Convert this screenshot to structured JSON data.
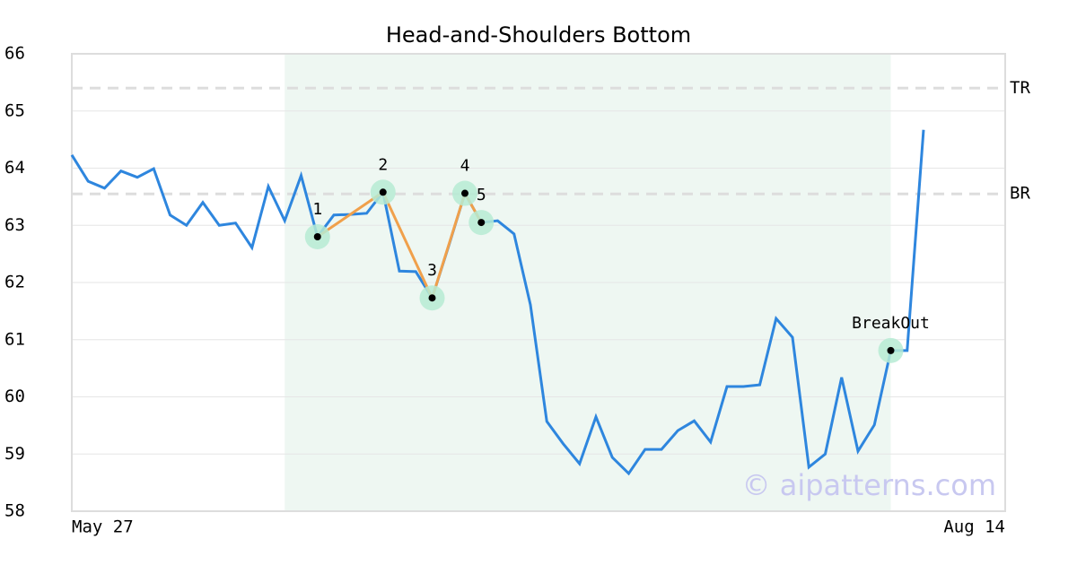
{
  "chart_data": {
    "type": "line",
    "title": "Head-and-Shoulders Bottom",
    "categories": [
      "May 27",
      null,
      null,
      null,
      null,
      null,
      null,
      null,
      null,
      null,
      null,
      null,
      null,
      null,
      null,
      null,
      null,
      null,
      null,
      null,
      null,
      null,
      null,
      null,
      null,
      null,
      null,
      null,
      null,
      null,
      null,
      null,
      null,
      null,
      null,
      null,
      null,
      null,
      null,
      null,
      null,
      null,
      null,
      null,
      null,
      null,
      null,
      null,
      null,
      null,
      null,
      null,
      "Aug 14"
    ],
    "series": [
      {
        "color": "#2e86de",
        "values": [
          64.23,
          63.77,
          63.65,
          63.95,
          63.84,
          63.99,
          63.18,
          63.0,
          63.4,
          63.0,
          63.04,
          62.61,
          63.68,
          63.08,
          63.87,
          62.8,
          63.18,
          63.19,
          63.21,
          63.58,
          62.2,
          62.19,
          61.73,
          62.63,
          63.56,
          63.05,
          63.08,
          62.85,
          61.61,
          59.57,
          59.18,
          58.83,
          59.65,
          58.94,
          58.66,
          59.08,
          59.08,
          59.41,
          59.58,
          59.21,
          60.18,
          60.18,
          60.21,
          61.37,
          61.04,
          58.77,
          59.0,
          60.34,
          59.05,
          59.51,
          60.81,
          60.81,
          64.67
        ]
      }
    ],
    "pattern_labels": [
      null,
      null,
      null,
      null,
      null,
      null,
      null,
      null,
      null,
      null,
      null,
      null,
      null,
      null,
      null,
      "1",
      null,
      null,
      null,
      "2",
      null,
      null,
      "3",
      null,
      "4",
      "5",
      null,
      null,
      null,
      null,
      null,
      null,
      null,
      null,
      null,
      null,
      null,
      null,
      null,
      null,
      null,
      null,
      null,
      null,
      null,
      null,
      null,
      null,
      null,
      null,
      null,
      null,
      null
    ],
    "breakout_labels": [
      null,
      null,
      null,
      null,
      null,
      null,
      null,
      null,
      null,
      null,
      null,
      null,
      null,
      null,
      null,
      null,
      null,
      null,
      null,
      null,
      null,
      null,
      null,
      null,
      null,
      null,
      null,
      null,
      null,
      null,
      null,
      null,
      null,
      null,
      null,
      null,
      null,
      null,
      null,
      null,
      null,
      null,
      null,
      null,
      null,
      null,
      null,
      null,
      null,
      null,
      "BreakOut",
      null,
      null
    ],
    "shaded": [
      false,
      false,
      false,
      false,
      false,
      false,
      false,
      false,
      false,
      false,
      false,
      false,
      false,
      true,
      true,
      true,
      true,
      true,
      true,
      true,
      true,
      true,
      true,
      true,
      true,
      true,
      true,
      true,
      true,
      true,
      true,
      true,
      true,
      true,
      true,
      true,
      true,
      true,
      true,
      true,
      true,
      true,
      true,
      true,
      true,
      true,
      true,
      true,
      true,
      true,
      true,
      false,
      false
    ],
    "pattern_color": "#f0a04b",
    "shade_color": "#eef7f2",
    "hlines": [
      {
        "label": "TR",
        "value": 65.4
      },
      {
        "label": "BR",
        "value": 63.55
      }
    ],
    "ylim": [
      58,
      66
    ],
    "yticks": [
      58,
      59,
      60,
      61,
      62,
      63,
      64,
      65,
      66
    ],
    "grid": true,
    "watermark": "© aipatterns.com"
  }
}
